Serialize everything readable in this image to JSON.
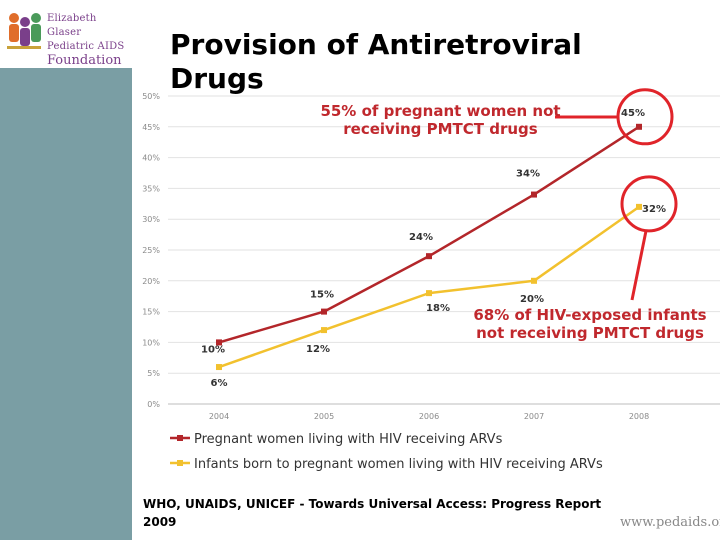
{
  "logo": {
    "line1": "Elizabeth Glaser",
    "line2": "Pediatric AIDS",
    "line3": "Foundation"
  },
  "slide": {
    "title": "Provision of Antiretroviral Drugs",
    "annotation_women": "55% of pregnant women not receiving PMTCT drugs",
    "annotation_infants": "68% of HIV-exposed infants not receiving PMTCT drugs",
    "source": "WHO, UNAIDS, UNICEF - Towards Universal Access: Progress Report 2009",
    "url": "www.pedaids.org"
  },
  "colors": {
    "series_women": "#b3262a",
    "series_infants": "#f2c12e",
    "callout": "#e0242a",
    "sidebar": "#7a9ea4"
  },
  "chart_data": {
    "type": "line",
    "title": "",
    "xlabel": "",
    "ylabel": "",
    "categories": [
      "2004",
      "2005",
      "2006",
      "2007",
      "2008"
    ],
    "ylim": [
      0,
      50
    ],
    "yticks": [
      0,
      5,
      10,
      15,
      20,
      25,
      30,
      35,
      40,
      45,
      50
    ],
    "ytick_labels": [
      "0%",
      "5%",
      "10%",
      "15%",
      "20%",
      "25%",
      "30%",
      "35%",
      "40%",
      "45%",
      "50%"
    ],
    "grid": true,
    "legend_position": "bottom",
    "series": [
      {
        "name": "Pregnant women living with HIV receiving ARVs",
        "values": [
          10,
          15,
          24,
          34,
          45
        ],
        "labels": [
          "10%",
          "15%",
          "24%",
          "34%",
          "45%"
        ],
        "color": "#b3262a"
      },
      {
        "name": "Infants born to pregnant women living with HIV receiving ARVs",
        "values": [
          6,
          12,
          18,
          20,
          32
        ],
        "labels": [
          "6%",
          "12%",
          "18%",
          "20%",
          "32%"
        ],
        "color": "#f2c12e"
      }
    ],
    "highlighted_points": [
      {
        "series": 0,
        "index": 4
      },
      {
        "series": 1,
        "index": 4
      }
    ]
  }
}
